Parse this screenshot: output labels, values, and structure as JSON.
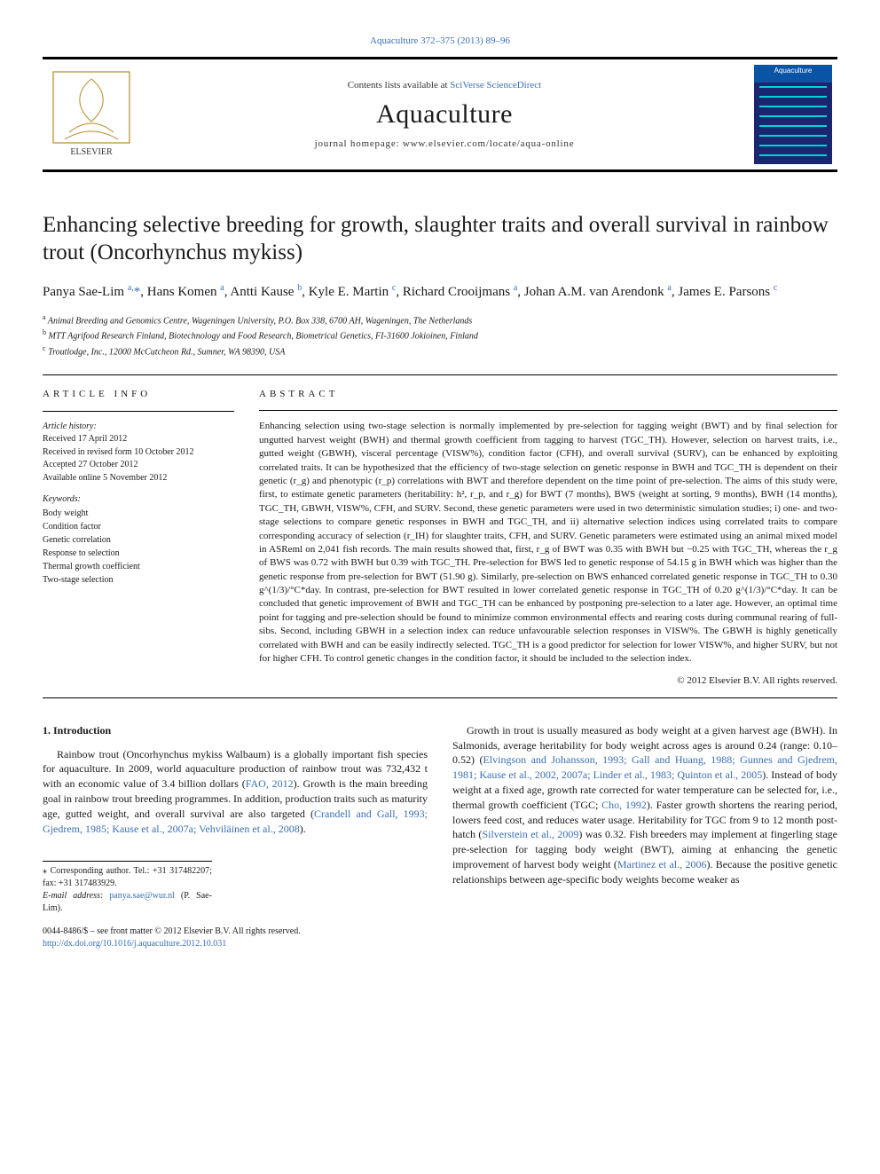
{
  "top_link": "Aquaculture 372–375 (2013) 89–96",
  "header": {
    "contents_prefix": "Contents lists available at ",
    "contents_link": "SciVerse ScienceDirect",
    "journal": "Aquaculture",
    "homepage": "journal homepage: www.elsevier.com/locate/aqua-online",
    "cover_label": "Aquaculture",
    "publisher": "ELSEVIER"
  },
  "title": "Enhancing selective breeding for growth, slaughter traits and overall survival in rainbow trout (Oncorhynchus mykiss)",
  "authors_html": "Panya Sae-Lim <sup>a,</sup><span class='star'>*</span>, Hans Komen <sup>a</sup>, Antti Kause <sup>b</sup>, Kyle E. Martin <sup>c</sup>, Richard Crooijmans <sup>a</sup>, Johan A.M. van Arendonk <sup>a</sup>, James E. Parsons <sup>c</sup>",
  "affiliations": [
    "a  Animal Breeding and Genomics Centre, Wageningen University, P.O. Box 338, 6700 AH, Wageningen, The Netherlands",
    "b  MTT Agrifood Research Finland, Biotechnology and Food Research, Biometrical Genetics, FI-31600 Jokioinen, Finland",
    "c  Troutlodge, Inc., 12000 McCutcheon Rd., Sumner, WA 98390, USA"
  ],
  "article_info_heading": "ARTICLE INFO",
  "abstract_heading": "ABSTRACT",
  "history": {
    "label": "Article history:",
    "lines": [
      "Received 17 April 2012",
      "Received in revised form 10 October 2012",
      "Accepted 27 October 2012",
      "Available online 5 November 2012"
    ]
  },
  "keywords": {
    "label": "Keywords:",
    "items": [
      "Body weight",
      "Condition factor",
      "Genetic correlation",
      "Response to selection",
      "Thermal growth coefficient",
      "Two-stage selection"
    ]
  },
  "abstract": "Enhancing selection using two-stage selection is normally implemented by pre-selection for tagging weight (BWT) and by final selection for ungutted harvest weight (BWH) and thermal growth coefficient from tagging to harvest (TGC_TH). However, selection on harvest traits, i.e., gutted weight (GBWH), visceral percentage (VISW%), condition factor (CFH), and overall survival (SURV), can be enhanced by exploiting correlated traits. It can be hypothesized that the efficiency of two-stage selection on genetic response in BWH and TGC_TH is dependent on their genetic (r_g) and phenotypic (r_p) correlations with BWT and therefore dependent on the time point of pre-selection. The aims of this study were, first, to estimate genetic parameters (heritability: h², r_p, and r_g) for BWT (7 months), BWS (weight at sorting, 9 months), BWH (14 months), TGC_TH, GBWH, VISW%, CFH, and SURV. Second, these genetic parameters were used in two deterministic simulation studies; i) one- and two-stage selections to compare genetic responses in BWH and TGC_TH, and ii) alternative selection indices using correlated traits to compare corresponding accuracy of selection (r_IH) for slaughter traits, CFH, and SURV. Genetic parameters were estimated using an animal mixed model in ASReml on 2,041 fish records. The main results showed that, first, r_g of BWT was 0.35 with BWH but −0.25 with TGC_TH, whereas the r_g of BWS was 0.72 with BWH but 0.39 with TGC_TH. Pre-selection for BWS led to genetic response of 54.15 g in BWH which was higher than the genetic response from pre-selection for BWT (51.90 g). Similarly, pre-selection on BWS enhanced correlated genetic response in TGC_TH to 0.30 g^(1/3)/°C*day. In contrast, pre-selection for BWT resulted in lower correlated genetic response in TGC_TH of 0.20 g^(1/3)/°C*day. It can be concluded that genetic improvement of BWH and TGC_TH can be enhanced by postponing pre-selection to a later age. However, an optimal time point for tagging and pre-selection should be found to minimize common environmental effects and rearing costs during communal rearing of full-sibs. Second, including GBWH in a selection index can reduce unfavourable selection responses in VISW%. The GBWH is highly genetically correlated with BWH and can be easily indirectly selected. TGC_TH is a good predictor for selection for lower VISW%, and higher SURV, but not for higher CFH. To control genetic changes in the condition factor, it should be included to the selection index.",
  "copyright": "© 2012 Elsevier B.V. All rights reserved.",
  "intro_heading": "1. Introduction",
  "col_left_p1": "Rainbow trout (Oncorhynchus mykiss Walbaum) is a globally important fish species for aquaculture. In 2009, world aquaculture production of rainbow trout was 732,432 t with an economic value of 3.4 billion dollars (",
  "col_left_ref1": "FAO, 2012",
  "col_left_p2": "). Growth is the main breeding goal in rainbow trout breeding programmes. In addition, production traits such as maturity age, gutted weight, and overall survival are also targeted (",
  "col_left_ref2": "Crandell and Gall, 1993; Gjedrem, 1985; Kause et al., 2007a; Vehviläinen et al., 2008",
  "col_left_p3": ").",
  "col_right_p1a": "Growth in trout is usually measured as body weight at a given harvest age (BWH). In Salmonids, average heritability for body weight across ages is around 0.24 (range: 0.10–0.52) (",
  "col_right_ref1": "Elvingson and Johansson, 1993; Gall and Huang, 1988; Gunnes and Gjedrem, 1981; Kause et al., 2002, 2007a; Linder et al., 1983; Quinton et al., 2005",
  "col_right_p1b": "). Instead of body weight at a fixed age, growth rate corrected for water temperature can be selected for, i.e., thermal growth coefficient (TGC; ",
  "col_right_ref2": "Cho, 1992",
  "col_right_p1c": "). Faster growth shortens the rearing period, lowers feed cost, and reduces water usage. Heritability for TGC from 9 to 12 month post-hatch (",
  "col_right_ref3": "Silverstein et al., 2009",
  "col_right_p1d": ") was 0.32. Fish breeders may implement at fingerling stage pre-selection for tagging body weight (BWT), aiming at enhancing the genetic improvement of harvest body weight (",
  "col_right_ref4": "Martinez et al., 2006",
  "col_right_p1e": "). Because the positive genetic relationships between age-specific body weights become weaker as",
  "footnote_corr": "⁎ Corresponding author. Tel.: +31 317482207; fax: +31 317483929.",
  "footnote_email_label": "E-mail address: ",
  "footnote_email": "panya.sae@wur.nl",
  "footnote_email_tail": " (P. Sae-Lim).",
  "doi_line1": "0044-8486/$ – see front matter © 2012 Elsevier B.V. All rights reserved.",
  "doi_link": "http://dx.doi.org/10.1016/j.aquaculture.2012.10.031",
  "colors": {
    "link": "#3a6fb7",
    "text": "#1a1a1a",
    "cover_top": "#0954a5",
    "cover_body": "#1a2770",
    "cover_wave": "#00d2d8"
  }
}
